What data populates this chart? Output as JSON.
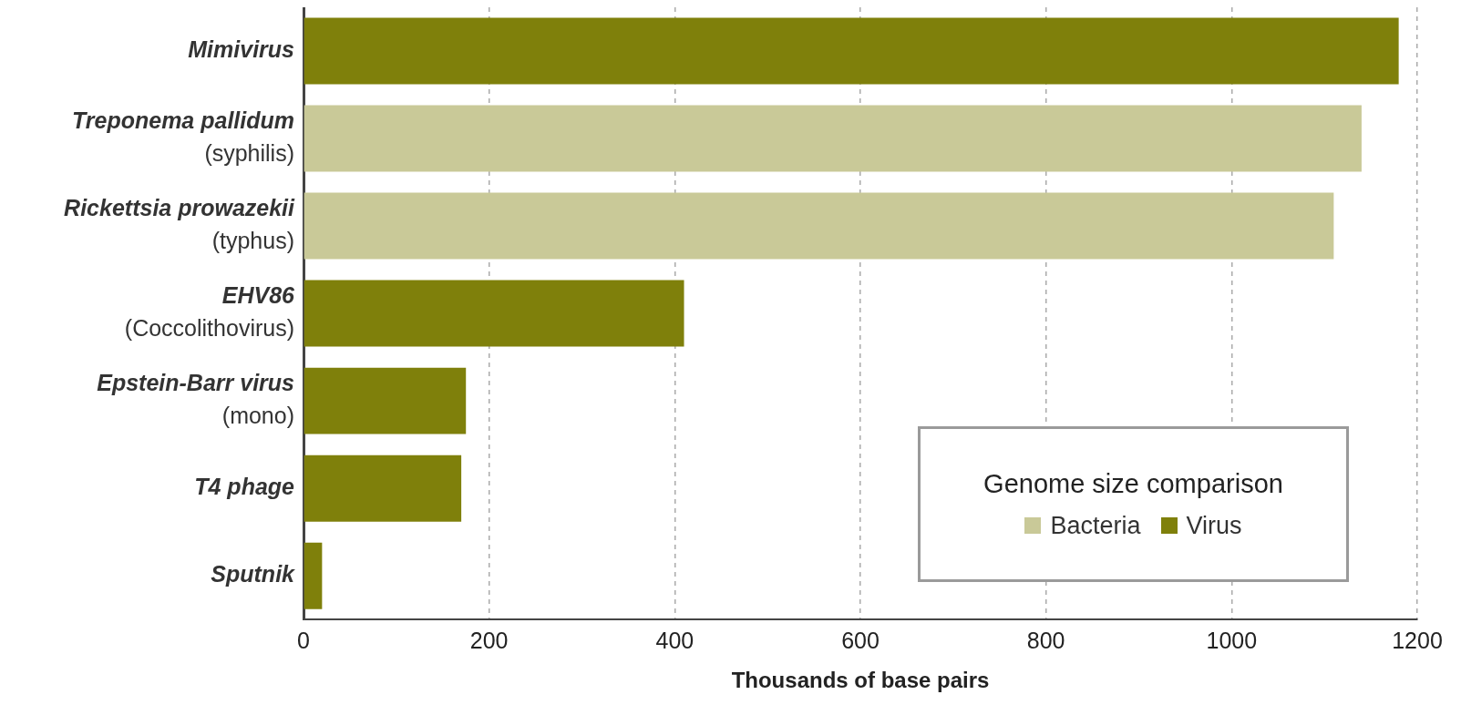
{
  "chart_data": {
    "type": "bar",
    "orientation": "horizontal",
    "xlabel": "Thousands of base pairs",
    "legend_title": "Genome size comparison",
    "categories": [
      "Mimivirus",
      "Treponema pallidum\n(syphilis)",
      "Rickettsia prowazekii\n(typhus)",
      "EHV86\n(Coccolithovirus)",
      "Epstein-Barr virus\n(mono)",
      "T4 phage",
      "Sputnik"
    ],
    "series": [
      {
        "name": "Bacteria",
        "color": "#c9c998",
        "values": [
          null,
          1140,
          1110,
          null,
          null,
          null,
          null
        ]
      },
      {
        "name": "Virus",
        "color": "#7f800b",
        "values": [
          1180,
          null,
          null,
          410,
          175,
          170,
          20
        ]
      }
    ],
    "xlim": [
      0,
      1200
    ],
    "xticks": [
      0,
      200,
      400,
      600,
      800,
      1000,
      1200
    ],
    "grid": "x",
    "legend": "bottom right"
  }
}
